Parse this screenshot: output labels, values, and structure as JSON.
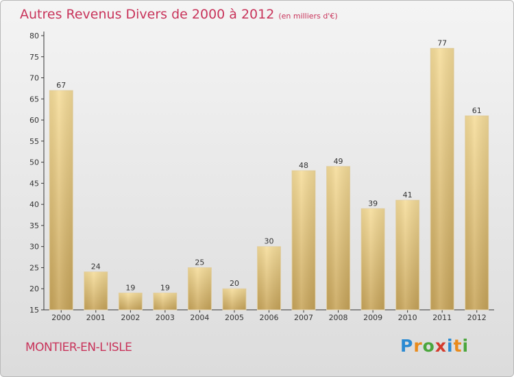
{
  "header": {
    "title": "Autres Revenus Divers de 2000 à 2012",
    "subtitle": "(en milliers d'€)"
  },
  "footer": {
    "commune": "MONTIER-EN-L'ISLE",
    "logo": {
      "letters": [
        "P",
        "r",
        "o",
        "x",
        "i",
        "t",
        "i"
      ],
      "colors": [
        "#2a8ad2",
        "#e98b1c",
        "#4aa63c",
        "#d33a2c",
        "#2a8ad2",
        "#e98b1c",
        "#4aa63c"
      ]
    }
  },
  "colors": {
    "bar_light": "#f6dd9a",
    "bar_dark": "#c8a55a",
    "text": "#c8335a"
  },
  "chart_data": {
    "type": "bar",
    "categories": [
      "2000",
      "2001",
      "2002",
      "2003",
      "2004",
      "2005",
      "2006",
      "2007",
      "2008",
      "2009",
      "2010",
      "2011",
      "2012"
    ],
    "values": [
      67,
      24,
      19,
      19,
      25,
      20,
      30,
      48,
      49,
      39,
      41,
      77,
      61
    ],
    "ylim": [
      15,
      80
    ],
    "yticks": [
      15,
      20,
      25,
      30,
      35,
      40,
      45,
      50,
      55,
      60,
      65,
      70,
      75,
      80
    ],
    "title": "Autres Revenus Divers de 2000 à 2012",
    "xlabel": "",
    "ylabel": "",
    "grid": false
  }
}
